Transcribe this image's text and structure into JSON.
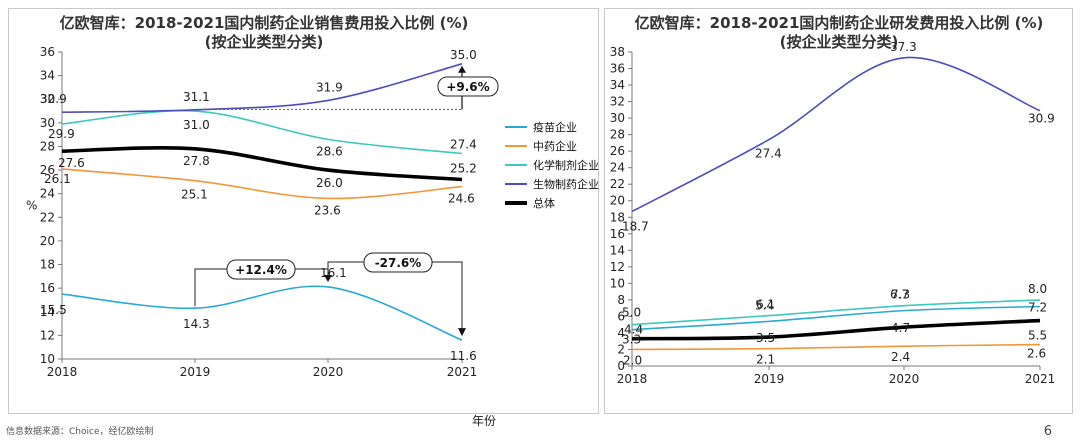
{
  "source_note": "信息数据来源：Choice，经亿欧绘制",
  "page_number": "6",
  "x_axis_name": "年份",
  "legend": [
    {
      "label": "疫苗企业",
      "color": "#29a8d6",
      "bold": false
    },
    {
      "label": "中药企业",
      "color": "#f0973a",
      "bold": false
    },
    {
      "label": "化学制剂企业",
      "color": "#3cc8c0",
      "bold": false
    },
    {
      "label": "生物制药企业",
      "color": "#4a4ec2",
      "bold": false
    },
    {
      "label": "总体",
      "color": "#000000",
      "bold": true
    }
  ],
  "chart_data": [
    {
      "type": "line",
      "title": "亿欧智库：2018-2021国内制药企业销售费用投入比例 (%)",
      "subtitle": "(按企业类型分类)",
      "xlabel": "年份",
      "ylabel": "%",
      "x": [
        "2018",
        "2019",
        "2020",
        "2021"
      ],
      "ylim": [
        10,
        36
      ],
      "yticks": [
        10,
        12,
        14,
        16,
        18,
        20,
        22,
        24,
        26,
        28,
        30,
        32,
        34,
        36
      ],
      "series": [
        {
          "name": "疫苗企业",
          "color": "#29a8d6",
          "values": [
            15.5,
            14.3,
            16.1,
            11.6
          ]
        },
        {
          "name": "中药企业",
          "color": "#f0973a",
          "values": [
            26.1,
            25.1,
            23.6,
            24.6
          ]
        },
        {
          "name": "化学制剂企业",
          "color": "#3cc8c0",
          "values": [
            29.9,
            31.0,
            28.6,
            27.4
          ]
        },
        {
          "name": "生物制药企业",
          "color": "#4a4ec2",
          "values": [
            30.9,
            31.1,
            31.9,
            35.0
          ]
        },
        {
          "name": "总体",
          "color": "#000000",
          "values": [
            27.6,
            27.8,
            26.0,
            25.2
          ]
        }
      ],
      "annotations": [
        {
          "text": "+9.6%"
        },
        {
          "text": "+12.4%"
        },
        {
          "text": "-27.6%"
        }
      ],
      "grid": false
    },
    {
      "type": "line",
      "title": "亿欧智库：2018-2021国内制药企业研发费用投入比例 (%)",
      "subtitle": "(按企业类型分类)",
      "x": [
        "2018",
        "2019",
        "2020",
        "2021"
      ],
      "ylim": [
        0,
        38
      ],
      "yticks": [
        0,
        2,
        4,
        6,
        8,
        10,
        12,
        14,
        16,
        18,
        20,
        22,
        24,
        26,
        28,
        30,
        32,
        34,
        36,
        38
      ],
      "series": [
        {
          "name": "疫苗企业",
          "color": "#29a8d6",
          "values": [
            4.4,
            5.4,
            6.7,
            7.2
          ]
        },
        {
          "name": "中药企业",
          "color": "#f0973a",
          "values": [
            2.0,
            2.1,
            2.4,
            2.6
          ]
        },
        {
          "name": "化学制剂企业",
          "color": "#3cc8c0",
          "values": [
            5.0,
            6.1,
            7.3,
            8.0
          ]
        },
        {
          "name": "生物制药企业",
          "color": "#4a4ec2",
          "values": [
            18.7,
            27.4,
            37.3,
            30.9
          ]
        },
        {
          "name": "总体",
          "color": "#000000",
          "values": [
            3.3,
            3.5,
            4.7,
            5.5
          ]
        }
      ],
      "grid": false
    }
  ]
}
